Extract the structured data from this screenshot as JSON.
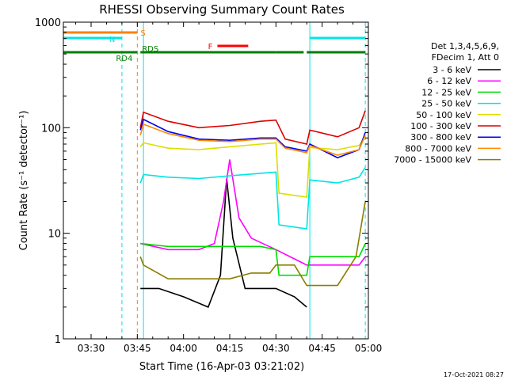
{
  "chart_data": {
    "type": "line",
    "title": "RHESSI Observing Summary Count Rates",
    "xlabel": "Start Time (16-Apr-03 03:21:02)",
    "ylabel": "Count Rate (s⁻¹ detector⁻¹)",
    "y_scale": "log",
    "ylim": [
      1,
      1000
    ],
    "xlim": [
      "03:21",
      "05:00"
    ],
    "x_ticks": [
      "03:30",
      "03:45",
      "04:00",
      "04:15",
      "04:30",
      "04:45",
      "05:00"
    ],
    "y_ticks": [
      "1",
      "10",
      "100",
      "1000"
    ],
    "footer": "17-Oct-2021 08:27",
    "legend": {
      "placement": "right",
      "header": [
        "Det 1,3,4,5,6,9,",
        "FDecim 1, Att 0"
      ],
      "entries": [
        {
          "label": "3 - 6 keV",
          "color": "#000000"
        },
        {
          "label": "6 - 12 keV",
          "color": "#ff00ff"
        },
        {
          "label": "12 - 25 keV",
          "color": "#00dd00"
        },
        {
          "label": "25 - 50 keV",
          "color": "#00e5e5"
        },
        {
          "label": "50 - 100 keV",
          "color": "#dddd00"
        },
        {
          "label": "100 - 300 keV",
          "color": "#dd0000"
        },
        {
          "label": "300 - 800 keV",
          "color": "#0000ee"
        },
        {
          "label": "800 - 7000 keV",
          "color": "#ff8800"
        },
        {
          "label": "7000 - 15000 keV",
          "color": "#8b7d00"
        }
      ]
    },
    "flags": {
      "S": {
        "label": "S",
        "color": "#ff8000",
        "intervals": [
          [
            "03:21",
            "03:45"
          ]
        ]
      },
      "N": {
        "label": "N",
        "color": "#00e5e5",
        "intervals": [
          [
            "03:21",
            "03:40"
          ],
          [
            "04:41",
            "04:59"
          ]
        ]
      },
      "F": {
        "label": "F",
        "color": "#ff0000",
        "intervals": [
          [
            "04:11",
            "04:21"
          ]
        ]
      },
      "RD4": {
        "label": "RD4",
        "color": "#008000",
        "intervals": [
          [
            "03:21",
            "03:45"
          ]
        ]
      },
      "RDS": {
        "label": "RDS",
        "color": "#008000",
        "intervals": [
          [
            "03:46",
            "04:30"
          ],
          [
            "04:30",
            "04:39"
          ],
          [
            "04:40",
            "04:59"
          ]
        ]
      }
    },
    "vlines": [
      {
        "time": "03:21",
        "color": "#00e5e5",
        "style": "solid"
      },
      {
        "time": "03:40",
        "color": "#00e5e5",
        "style": "dashed"
      },
      {
        "time": "03:45",
        "color": "#ff8000",
        "style": "dashed"
      },
      {
        "time": "03:47",
        "color": "#00e5e5",
        "style": "solid"
      },
      {
        "time": "04:41",
        "color": "#00e5e5",
        "style": "solid"
      },
      {
        "time": "04:59",
        "color": "#00e5e5",
        "style": "dashed"
      }
    ],
    "series": [
      {
        "name": "3 - 6 keV",
        "color": "#000000",
        "t": [
          "03:46",
          "03:52",
          "04:00",
          "04:08",
          "04:12",
          "04:14",
          "04:16",
          "04:20",
          "04:25",
          "04:30",
          "04:36",
          "04:40"
        ],
        "v": [
          3,
          3,
          2.5,
          2,
          4,
          33,
          9,
          3,
          3,
          3,
          2.5,
          2
        ]
      },
      {
        "name": "6 - 12 keV",
        "color": "#ff00ff",
        "t": [
          "03:46",
          "03:55",
          "04:05",
          "04:10",
          "04:13",
          "04:15",
          "04:18",
          "04:22",
          "04:30",
          "04:40",
          "04:50",
          "04:57",
          "04:59"
        ],
        "v": [
          8,
          7,
          7,
          8,
          20,
          50,
          14,
          9,
          7,
          5,
          5,
          5,
          6
        ]
      },
      {
        "name": "12 - 25 keV",
        "color": "#00dd00",
        "t": [
          "03:46",
          "03:55",
          "04:05",
          "04:15",
          "04:25",
          "04:30",
          "04:31",
          "04:40",
          "04:41",
          "04:50",
          "04:57",
          "04:59"
        ],
        "v": [
          8,
          7.5,
          7.5,
          7.5,
          7.5,
          7,
          4,
          4,
          6,
          6,
          6,
          8
        ]
      },
      {
        "name": "25 - 50 keV",
        "color": "#00e5e5",
        "t": [
          "03:46",
          "03:47",
          "03:55",
          "04:05",
          "04:15",
          "04:25",
          "04:30",
          "04:31",
          "04:40",
          "04:41",
          "04:50",
          "04:57",
          "04:59"
        ],
        "v": [
          30,
          36,
          34,
          33,
          35,
          37,
          38,
          12,
          11,
          32,
          30,
          34,
          42
        ]
      },
      {
        "name": "50 - 100 keV",
        "color": "#dddd00",
        "t": [
          "03:46",
          "03:47",
          "03:55",
          "04:05",
          "04:15",
          "04:25",
          "04:30",
          "04:31",
          "04:40",
          "04:41",
          "04:50",
          "04:57",
          "04:59"
        ],
        "v": [
          66,
          72,
          64,
          62,
          66,
          70,
          72,
          24,
          22,
          65,
          62,
          68,
          82
        ]
      },
      {
        "name": "100 - 300 keV",
        "color": "#dd0000",
        "t": [
          "03:46",
          "03:47",
          "03:55",
          "04:05",
          "04:15",
          "04:25",
          "04:30",
          "04:33",
          "04:40",
          "04:41",
          "04:50",
          "04:57",
          "04:59"
        ],
        "v": [
          100,
          140,
          115,
          100,
          105,
          115,
          118,
          78,
          70,
          95,
          82,
          100,
          145
        ]
      },
      {
        "name": "300 - 800 keV",
        "color": "#0000ee",
        "t": [
          "03:46",
          "03:47",
          "03:55",
          "04:05",
          "04:15",
          "04:25",
          "04:30",
          "04:33",
          "04:40",
          "04:41",
          "04:50",
          "04:57",
          "04:59"
        ],
        "v": [
          95,
          120,
          92,
          78,
          76,
          80,
          80,
          66,
          60,
          70,
          52,
          62,
          90
        ]
      },
      {
        "name": "800 - 7000 keV",
        "color": "#ff8800",
        "t": [
          "03:46",
          "03:47",
          "03:55",
          "04:05",
          "04:15",
          "04:25",
          "04:30",
          "04:33",
          "04:40",
          "04:41",
          "04:50",
          "04:57",
          "04:59"
        ],
        "v": [
          85,
          108,
          88,
          76,
          74,
          78,
          78,
          64,
          58,
          68,
          55,
          62,
          85
        ]
      },
      {
        "name": "7000 - 15000 keV",
        "color": "#8b7d00",
        "t": [
          "03:46",
          "03:47",
          "03:55",
          "04:05",
          "04:15",
          "04:22",
          "04:28",
          "04:30",
          "04:36",
          "04:40",
          "04:50",
          "04:56",
          "04:59"
        ],
        "v": [
          6,
          5,
          3.7,
          3.7,
          3.7,
          4.2,
          4.2,
          5,
          5,
          3.2,
          3.2,
          6,
          20
        ]
      }
    ]
  }
}
